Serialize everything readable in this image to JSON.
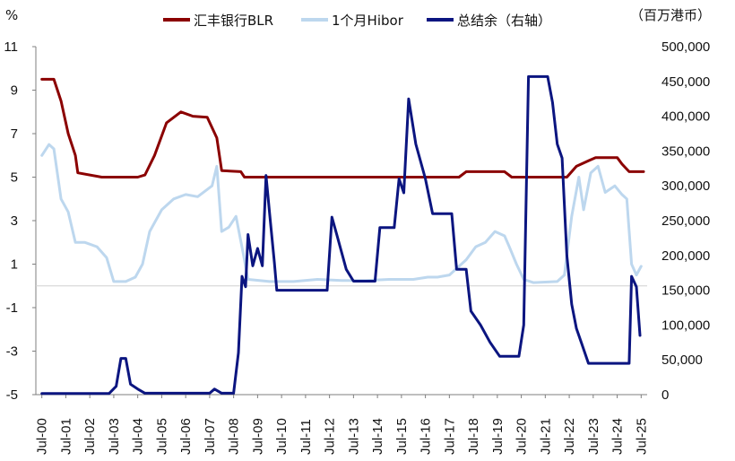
{
  "chart_data": {
    "type": "line",
    "left_unit": "%",
    "right_unit": "（百万港币）",
    "left_axis": {
      "ylim": [
        -5,
        11
      ],
      "ticks": [
        "11",
        "9",
        "7",
        "5",
        "3",
        "1",
        "-1",
        "-3",
        "-5"
      ]
    },
    "right_axis": {
      "ylim": [
        0,
        500000
      ],
      "ticks": [
        "500,000",
        "450,000",
        "400,000",
        "350,000",
        "300,000",
        "250,000",
        "200,000",
        "150,000",
        "100,000",
        "50,000",
        "0"
      ]
    },
    "x_categories": [
      "Jul-00",
      "Jul-01",
      "Jul-02",
      "Jul-03",
      "Jul-04",
      "Jul-05",
      "Jul-06",
      "Jul-07",
      "Jul-08",
      "Jul-09",
      "Jul-10",
      "Jul-11",
      "Jul-12",
      "Jul-13",
      "Jul-14",
      "Jul-15",
      "Jul-16",
      "Jul-17",
      "Jul-18",
      "Jul-19",
      "Jul-20",
      "Jul-21",
      "Jul-22",
      "Jul-23",
      "Jul-24",
      "Jul-25"
    ],
    "legend_position": "top",
    "grid": false,
    "series": [
      {
        "name": "汇丰银行BLR",
        "axis": "left",
        "color": "#8b0000",
        "points": [
          [
            2000.5,
            9.5
          ],
          [
            2001.0,
            9.5
          ],
          [
            2001.3,
            8.5
          ],
          [
            2001.6,
            7.0
          ],
          [
            2001.9,
            6.0
          ],
          [
            2002.0,
            5.2
          ],
          [
            2003.0,
            5.0
          ],
          [
            2004.5,
            5.0
          ],
          [
            2004.8,
            5.1
          ],
          [
            2005.2,
            6.0
          ],
          [
            2005.7,
            7.5
          ],
          [
            2006.3,
            8.0
          ],
          [
            2006.8,
            7.8
          ],
          [
            2007.4,
            7.75
          ],
          [
            2007.8,
            6.8
          ],
          [
            2008.0,
            5.3
          ],
          [
            2008.8,
            5.25
          ],
          [
            2008.95,
            5.0
          ],
          [
            2017.9,
            5.0
          ],
          [
            2018.2,
            5.25
          ],
          [
            2019.8,
            5.25
          ],
          [
            2020.1,
            5.0
          ],
          [
            2022.4,
            5.0
          ],
          [
            2022.8,
            5.5
          ],
          [
            2023.3,
            5.75
          ],
          [
            2023.6,
            5.9
          ],
          [
            2024.5,
            5.9
          ],
          [
            2024.7,
            5.6
          ],
          [
            2025.0,
            5.25
          ],
          [
            2025.6,
            5.25
          ]
        ]
      },
      {
        "name": "1个月Hibor",
        "axis": "left",
        "color": "#bdd7ee",
        "points": [
          [
            2000.5,
            6.0
          ],
          [
            2000.8,
            6.5
          ],
          [
            2001.0,
            6.3
          ],
          [
            2001.3,
            4.0
          ],
          [
            2001.6,
            3.4
          ],
          [
            2001.9,
            2.0
          ],
          [
            2002.3,
            2.0
          ],
          [
            2002.8,
            1.8
          ],
          [
            2003.2,
            1.3
          ],
          [
            2003.5,
            0.2
          ],
          [
            2004.0,
            0.2
          ],
          [
            2004.4,
            0.4
          ],
          [
            2004.7,
            1.0
          ],
          [
            2005.0,
            2.5
          ],
          [
            2005.5,
            3.5
          ],
          [
            2006.0,
            4.0
          ],
          [
            2006.5,
            4.2
          ],
          [
            2007.0,
            4.1
          ],
          [
            2007.6,
            4.6
          ],
          [
            2007.8,
            5.5
          ],
          [
            2008.0,
            2.5
          ],
          [
            2008.3,
            2.7
          ],
          [
            2008.6,
            3.2
          ],
          [
            2008.9,
            1.5
          ],
          [
            2009.1,
            0.3
          ],
          [
            2010.0,
            0.2
          ],
          [
            2011.0,
            0.2
          ],
          [
            2012.0,
            0.3
          ],
          [
            2013.0,
            0.25
          ],
          [
            2014.0,
            0.25
          ],
          [
            2015.0,
            0.3
          ],
          [
            2016.0,
            0.3
          ],
          [
            2016.6,
            0.4
          ],
          [
            2017.0,
            0.4
          ],
          [
            2017.5,
            0.5
          ],
          [
            2017.8,
            0.8
          ],
          [
            2018.2,
            1.2
          ],
          [
            2018.6,
            1.8
          ],
          [
            2019.0,
            2.0
          ],
          [
            2019.4,
            2.5
          ],
          [
            2019.8,
            2.3
          ],
          [
            2020.0,
            1.8
          ],
          [
            2020.3,
            1.0
          ],
          [
            2020.6,
            0.3
          ],
          [
            2021.0,
            0.15
          ],
          [
            2022.0,
            0.2
          ],
          [
            2022.3,
            0.5
          ],
          [
            2022.6,
            3.2
          ],
          [
            2022.9,
            5.0
          ],
          [
            2023.1,
            3.5
          ],
          [
            2023.4,
            5.2
          ],
          [
            2023.7,
            5.5
          ],
          [
            2024.0,
            4.3
          ],
          [
            2024.4,
            4.6
          ],
          [
            2024.7,
            4.2
          ],
          [
            2024.9,
            4.0
          ],
          [
            2025.1,
            1.0
          ],
          [
            2025.3,
            0.5
          ],
          [
            2025.5,
            0.9
          ]
        ]
      },
      {
        "name": "总结余（右轴）",
        "axis": "right",
        "color": "#0b1580",
        "points": [
          [
            2000.5,
            1500
          ],
          [
            2003.3,
            1500
          ],
          [
            2003.6,
            12000
          ],
          [
            2003.8,
            52000
          ],
          [
            2004.0,
            52000
          ],
          [
            2004.2,
            15000
          ],
          [
            2004.5,
            8000
          ],
          [
            2004.8,
            2000
          ],
          [
            2007.5,
            2000
          ],
          [
            2007.7,
            8000
          ],
          [
            2008.0,
            2000
          ],
          [
            2008.5,
            2000
          ],
          [
            2008.7,
            60000
          ],
          [
            2008.85,
            170000
          ],
          [
            2009.0,
            155000
          ],
          [
            2009.1,
            230000
          ],
          [
            2009.3,
            185000
          ],
          [
            2009.5,
            210000
          ],
          [
            2009.7,
            185000
          ],
          [
            2009.85,
            315000
          ],
          [
            2010.0,
            260000
          ],
          [
            2010.2,
            190000
          ],
          [
            2010.3,
            150000
          ],
          [
            2012.4,
            150000
          ],
          [
            2012.6,
            255000
          ],
          [
            2012.8,
            230000
          ],
          [
            2013.2,
            180000
          ],
          [
            2013.5,
            163000
          ],
          [
            2014.4,
            163000
          ],
          [
            2014.6,
            240000
          ],
          [
            2015.2,
            240000
          ],
          [
            2015.4,
            310000
          ],
          [
            2015.6,
            290000
          ],
          [
            2015.8,
            425000
          ],
          [
            2016.1,
            360000
          ],
          [
            2016.5,
            310000
          ],
          [
            2016.8,
            260000
          ],
          [
            2017.6,
            260000
          ],
          [
            2017.8,
            180000
          ],
          [
            2018.2,
            180000
          ],
          [
            2018.4,
            120000
          ],
          [
            2018.8,
            100000
          ],
          [
            2019.2,
            75000
          ],
          [
            2019.6,
            55000
          ],
          [
            2020.4,
            55000
          ],
          [
            2020.6,
            100000
          ],
          [
            2020.8,
            457000
          ],
          [
            2021.6,
            457000
          ],
          [
            2021.8,
            420000
          ],
          [
            2022.0,
            360000
          ],
          [
            2022.2,
            340000
          ],
          [
            2022.4,
            200000
          ],
          [
            2022.6,
            130000
          ],
          [
            2022.8,
            95000
          ],
          [
            2023.0,
            75000
          ],
          [
            2023.3,
            45000
          ],
          [
            2024.8,
            45000
          ],
          [
            2025.0,
            45000
          ],
          [
            2025.1,
            170000
          ],
          [
            2025.3,
            155000
          ],
          [
            2025.45,
            85000
          ]
        ]
      }
    ]
  }
}
